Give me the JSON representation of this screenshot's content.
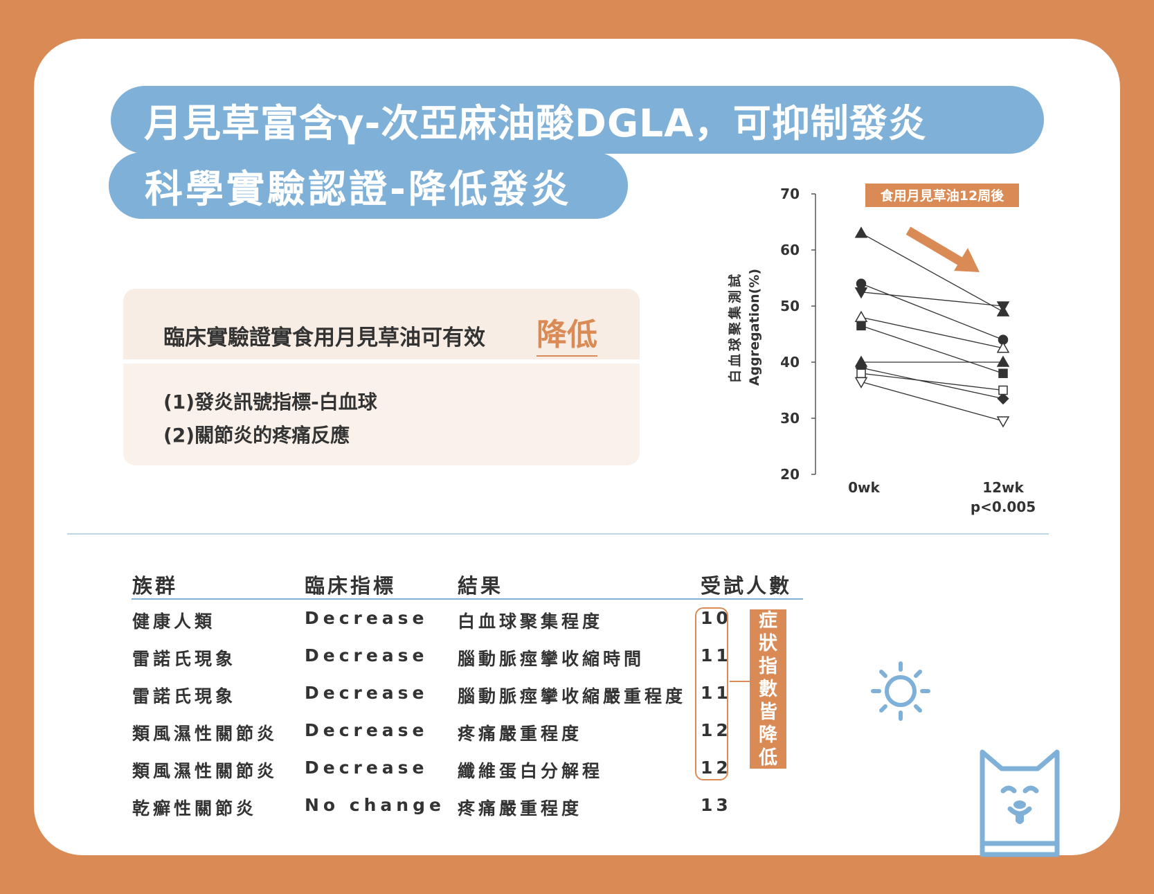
{
  "title_line1": "月見草富含γ-次亞麻油酸DGLA，可抑制發炎",
  "title_line2": "科學實驗認證-降低發炎",
  "info": {
    "heading": "臨床實驗證實食用月見草油可有效",
    "highlight": "降低",
    "items": [
      "(1)發炎訊號指標-白血球",
      "(2)關節炎的疼痛反應"
    ]
  },
  "chart_data": {
    "type": "line",
    "banner": "食用月見草油12周後",
    "ylabel_cn": "白血球聚集測試",
    "ylabel_en": "Aggregation(%)",
    "ylim": [
      20,
      70
    ],
    "yticks": [
      "20",
      "30",
      "40",
      "50",
      "60",
      "70"
    ],
    "categories": [
      "0wk",
      "12wk"
    ],
    "note": "p<0.005",
    "series": [
      {
        "marker": "triangle-up-filled",
        "values": [
          63,
          49
        ]
      },
      {
        "marker": "circle-filled",
        "values": [
          54,
          44
        ]
      },
      {
        "marker": "triangle-down-filled",
        "values": [
          52.5,
          50
        ]
      },
      {
        "marker": "triangle-up-open",
        "values": [
          48,
          42.5
        ]
      },
      {
        "marker": "square-filled",
        "values": [
          46.5,
          38
        ]
      },
      {
        "marker": "triangle-up-filled",
        "values": [
          40,
          40
        ]
      },
      {
        "marker": "diamond-filled",
        "values": [
          39,
          33.5
        ]
      },
      {
        "marker": "square-open",
        "values": [
          38,
          35
        ]
      },
      {
        "marker": "triangle-down-open",
        "values": [
          36.5,
          29.5
        ]
      }
    ],
    "colors": {
      "line": "#333333",
      "accent": "#DA8A55"
    }
  },
  "table": {
    "headers": [
      "族群",
      "臨床指標",
      "結果",
      "受試人數"
    ],
    "rows": [
      [
        "健康人類",
        "Decrease",
        "白血球聚集程度",
        "10"
      ],
      [
        "雷諾氏現象",
        "Decrease",
        "腦動脈痙攣收縮時間",
        "11"
      ],
      [
        "雷諾氏現象",
        "Decrease",
        "腦動脈痙攣收縮嚴重程度",
        "11"
      ],
      [
        "類風濕性關節炎",
        "Decrease",
        "疼痛嚴重程度",
        "12"
      ],
      [
        "類風濕性關節炎",
        "Decrease",
        "纖維蛋白分解程",
        "12"
      ],
      [
        "乾癬性關節炎",
        "No change",
        "疼痛嚴重程度",
        "13"
      ]
    ],
    "symptom_label": [
      "症",
      "狀",
      "指",
      "數",
      "皆",
      "降",
      "低"
    ]
  },
  "colors": {
    "background": "#DA8A55",
    "title_pill": "#7FB0D7",
    "accent": "#DA8A55",
    "info_box": "#F9F1EA"
  },
  "icons": [
    "sun-icon",
    "dog-logo-icon"
  ]
}
